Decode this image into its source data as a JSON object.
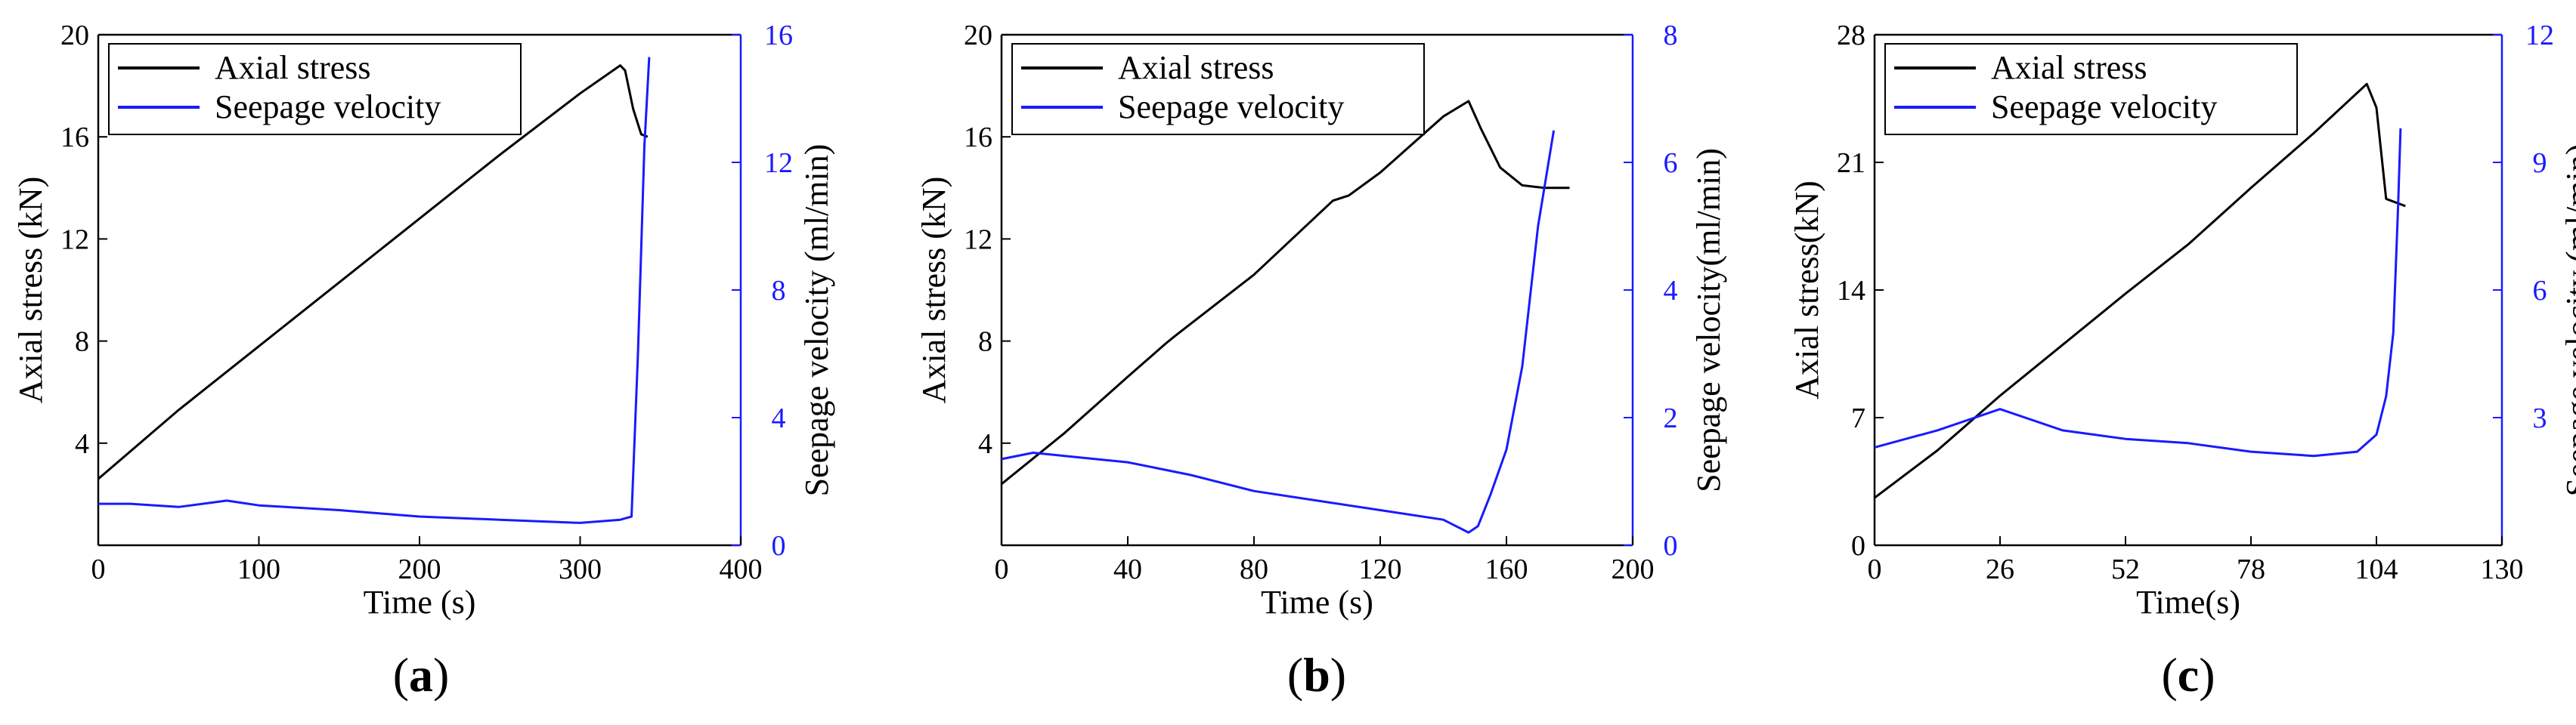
{
  "colors": {
    "stress": "#000000",
    "seepage": "#1a1aff",
    "axis": "#000000"
  },
  "chart_data": [
    {
      "type": "line",
      "panel_label_pre": "(",
      "panel_label": "a",
      "panel_label_post": ")",
      "xlabel": "Time (s)",
      "ylabel": "Axial stress (kN)",
      "y2label": "Seepage velocity (ml/min)",
      "xlim": [
        0,
        400
      ],
      "ylim": [
        0,
        20
      ],
      "y2lim": [
        0,
        16
      ],
      "xticks": [
        0,
        100,
        200,
        300,
        400
      ],
      "yticks": [
        4,
        8,
        12,
        16,
        20
      ],
      "y2ticks": [
        0,
        4,
        8,
        12,
        16
      ],
      "legend": [
        "Axial stress",
        "Seepage velocity"
      ],
      "legend_position": "top-left",
      "series": [
        {
          "name": "Axial stress",
          "axis": "left",
          "x": [
            0,
            50,
            100,
            150,
            200,
            250,
            300,
            325,
            328,
            333,
            338,
            342
          ],
          "y": [
            2.6,
            5.3,
            7.8,
            10.3,
            12.8,
            15.3,
            17.7,
            18.8,
            18.6,
            17.1,
            16.1,
            16.0
          ]
        },
        {
          "name": "Seepage velocity",
          "axis": "right",
          "x": [
            0,
            20,
            50,
            80,
            100,
            150,
            200,
            250,
            300,
            325,
            332,
            336,
            340,
            343
          ],
          "y": [
            1.3,
            1.3,
            1.2,
            1.4,
            1.25,
            1.1,
            0.9,
            0.8,
            0.7,
            0.8,
            0.9,
            6.0,
            12.5,
            15.3
          ]
        }
      ]
    },
    {
      "type": "line",
      "panel_label_pre": "(",
      "panel_label": "b",
      "panel_label_post": ")",
      "xlabel": "Time (s)",
      "ylabel": "Axial stress (kN)",
      "y2label": "Seepage velocity(ml/min)",
      "xlim": [
        0,
        200
      ],
      "ylim": [
        0,
        20
      ],
      "y2lim": [
        0,
        8
      ],
      "xticks": [
        0,
        40,
        80,
        120,
        160,
        200
      ],
      "yticks": [
        4,
        8,
        12,
        16,
        20
      ],
      "y2ticks": [
        0,
        2,
        4,
        6,
        8
      ],
      "legend": [
        "Axial stress",
        "Seepage velocity"
      ],
      "legend_position": "top-left",
      "series": [
        {
          "name": "Axial stress",
          "axis": "left",
          "x": [
            0,
            20,
            40,
            52,
            55,
            80,
            105,
            110,
            120,
            140,
            148,
            152,
            158,
            165,
            172,
            180
          ],
          "y": [
            2.4,
            4.4,
            6.6,
            7.9,
            8.2,
            10.6,
            13.5,
            13.7,
            14.6,
            16.8,
            17.4,
            16.3,
            14.8,
            14.1,
            14.0,
            14.0
          ]
        },
        {
          "name": "Seepage velocity",
          "axis": "right",
          "x": [
            0,
            10,
            20,
            40,
            60,
            80,
            100,
            120,
            140,
            148,
            151,
            155,
            160,
            165,
            170,
            175
          ],
          "y": [
            1.35,
            1.45,
            1.4,
            1.3,
            1.1,
            0.85,
            0.7,
            0.55,
            0.4,
            0.2,
            0.3,
            0.8,
            1.5,
            2.8,
            5.0,
            6.5
          ]
        }
      ]
    },
    {
      "type": "line",
      "panel_label_pre": "(",
      "panel_label": "c",
      "panel_label_post": ")",
      "xlabel": "Time(s)",
      "ylabel": "Axial stress(kN)",
      "y2label": "Seepage velocity (ml/min)",
      "xlim": [
        0,
        130
      ],
      "ylim": [
        0,
        28
      ],
      "y2lim": [
        0,
        12
      ],
      "xticks": [
        0,
        26,
        52,
        78,
        104,
        130
      ],
      "yticks": [
        0,
        7,
        14,
        21,
        28
      ],
      "y2ticks": [
        3,
        6,
        9,
        12
      ],
      "legend": [
        "Axial   stress",
        "Seepage velocity"
      ],
      "legend_position": "top-left",
      "series": [
        {
          "name": "Axial stress",
          "axis": "left",
          "x": [
            0,
            13,
            26,
            39,
            52,
            65,
            78,
            91,
            102,
            104,
            106,
            110
          ],
          "y": [
            2.6,
            5.2,
            8.2,
            11.0,
            13.8,
            16.5,
            19.6,
            22.6,
            25.3,
            24.0,
            19.0,
            18.6
          ]
        },
        {
          "name": "Seepage velocity",
          "axis": "right",
          "x": [
            0,
            13,
            26,
            39,
            52,
            65,
            78,
            91,
            100,
            104,
            106,
            107.5,
            108.5,
            109
          ],
          "y": [
            2.3,
            2.7,
            3.2,
            2.7,
            2.5,
            2.4,
            2.2,
            2.1,
            2.2,
            2.6,
            3.5,
            5.0,
            8.0,
            9.8
          ]
        }
      ]
    }
  ]
}
